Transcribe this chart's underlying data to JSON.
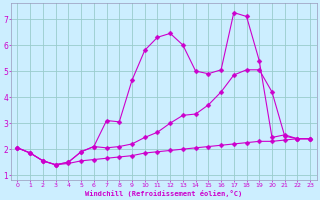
{
  "xlabel": "Windchill (Refroidissement éolien,°C)",
  "bg_color": "#cceeff",
  "grid_color": "#99cccc",
  "line_color": "#cc00cc",
  "spine_color": "#9999bb",
  "xlim": [
    -0.5,
    23.5
  ],
  "ylim": [
    0.8,
    7.6
  ],
  "yticks": [
    1,
    2,
    3,
    4,
    5,
    6,
    7
  ],
  "xticks": [
    0,
    1,
    2,
    3,
    4,
    5,
    6,
    7,
    8,
    9,
    10,
    11,
    12,
    13,
    14,
    15,
    16,
    17,
    18,
    19,
    20,
    21,
    22,
    23
  ],
  "series_bottom_x": [
    0,
    1,
    2,
    3,
    4,
    5,
    6,
    7,
    8,
    9,
    10,
    11,
    12,
    13,
    14,
    15,
    16,
    17,
    18,
    19,
    20,
    21,
    22,
    23
  ],
  "series_bottom_y": [
    2.05,
    1.85,
    1.55,
    1.4,
    1.45,
    1.55,
    1.6,
    1.65,
    1.7,
    1.75,
    1.85,
    1.9,
    1.95,
    2.0,
    2.05,
    2.1,
    2.15,
    2.2,
    2.25,
    2.3,
    2.3,
    2.35,
    2.4,
    2.4
  ],
  "series_mid_x": [
    0,
    1,
    2,
    3,
    4,
    5,
    6,
    7,
    8,
    9,
    10,
    11,
    12,
    13,
    14,
    15,
    16,
    17,
    18,
    19,
    20,
    21,
    22,
    23
  ],
  "series_mid_y": [
    2.05,
    1.85,
    1.55,
    1.4,
    1.5,
    1.9,
    2.1,
    2.05,
    2.1,
    2.2,
    2.45,
    2.65,
    3.0,
    3.3,
    3.35,
    3.7,
    4.2,
    4.85,
    5.05,
    5.05,
    4.2,
    2.5,
    2.4,
    2.4
  ],
  "series_top_x": [
    0,
    1,
    2,
    3,
    4,
    5,
    6,
    7,
    8,
    9,
    10,
    11,
    12,
    13,
    14,
    15,
    16,
    17,
    18,
    19,
    20,
    21,
    22,
    23
  ],
  "series_top_y": [
    2.05,
    1.85,
    1.55,
    1.4,
    1.5,
    1.9,
    2.1,
    3.1,
    3.05,
    4.65,
    5.8,
    6.3,
    6.45,
    6.0,
    5.0,
    4.9,
    5.05,
    7.25,
    7.1,
    5.4,
    2.45,
    2.55,
    2.4,
    2.4
  ]
}
